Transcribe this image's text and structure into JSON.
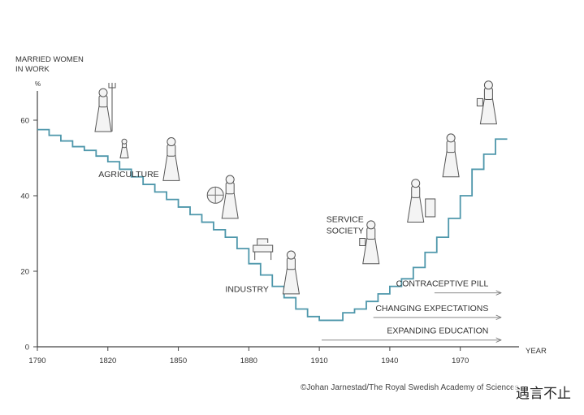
{
  "chart_data": {
    "type": "line",
    "step": true,
    "title": "",
    "ylabel": "MARRIED WOMEN IN WORK",
    "ylabel_lines": [
      "MARRIED WOMEN",
      "IN WORK"
    ],
    "yunit": "%",
    "xlabel": "YEAR",
    "xlim": [
      1790,
      1995
    ],
    "ylim": [
      0,
      70
    ],
    "xticks": [
      1790,
      1820,
      1850,
      1880,
      1910,
      1940,
      1970
    ],
    "yticks": [
      0,
      20,
      40,
      60
    ],
    "grid": false,
    "line_color": "#4e97ab",
    "x": [
      1790,
      1795,
      1800,
      1805,
      1810,
      1815,
      1820,
      1825,
      1830,
      1835,
      1840,
      1845,
      1850,
      1855,
      1860,
      1865,
      1870,
      1875,
      1880,
      1885,
      1890,
      1895,
      1900,
      1905,
      1910,
      1915,
      1920,
      1925,
      1930,
      1935,
      1940,
      1945,
      1950,
      1955,
      1960,
      1965,
      1970,
      1975,
      1980,
      1985
    ],
    "y": [
      57.5,
      56,
      54.5,
      53,
      52,
      50.5,
      49,
      47,
      45,
      43,
      41,
      39,
      37,
      35,
      33,
      31,
      29,
      26,
      22,
      19,
      16,
      13,
      10,
      8,
      7,
      7,
      9,
      10,
      12,
      14,
      16,
      18,
      21,
      25,
      29,
      34,
      40,
      47,
      51,
      55
    ],
    "annotations": [
      {
        "text": "AGRICULTURE",
        "x": 1816,
        "y": 45
      },
      {
        "text": "INDUSTRY",
        "x": 1870,
        "y": 14.5
      },
      {
        "text": "SERVICE",
        "x": 1913,
        "y": 33
      },
      {
        "text": "SOCIETY",
        "x": 1913,
        "y": 30
      },
      {
        "text": "CONTRACEPTIVE PILL",
        "x": 1982,
        "y": 16,
        "arrow_from": 1959
      },
      {
        "text": "CHANGING EXPECTATIONS",
        "x": 1982,
        "y": 9.5,
        "arrow_from": 1933
      },
      {
        "text": "EXPANDING EDUCATION",
        "x": 1982,
        "y": 3.5,
        "arrow_from": 1911
      }
    ],
    "figures": [
      {
        "icon": "farm-woman-with-pitchfork-icon",
        "x": 1818,
        "y": 57
      },
      {
        "icon": "child-icon",
        "x": 1827,
        "y": 50
      },
      {
        "icon": "woman-with-apron-icon",
        "x": 1847,
        "y": 44
      },
      {
        "icon": "spinning-wheel-woman-icon",
        "x": 1872,
        "y": 34
      },
      {
        "icon": "sewing-machine-icon",
        "x": 1886,
        "y": 23
      },
      {
        "icon": "factory-worker-woman-icon",
        "x": 1898,
        "y": 14
      },
      {
        "icon": "office-woman-with-folder-icon",
        "x": 1932,
        "y": 22
      },
      {
        "icon": "woman-at-desk-icon",
        "x": 1951,
        "y": 33
      },
      {
        "icon": "woman-in-skirt-suit-icon",
        "x": 1966,
        "y": 45
      },
      {
        "icon": "modern-woman-with-bag-icon",
        "x": 1982,
        "y": 59
      }
    ]
  },
  "credit": "©Johan Jarnestad/The Royal Swedish Academy of Sciences",
  "watermark": "遇言不止"
}
